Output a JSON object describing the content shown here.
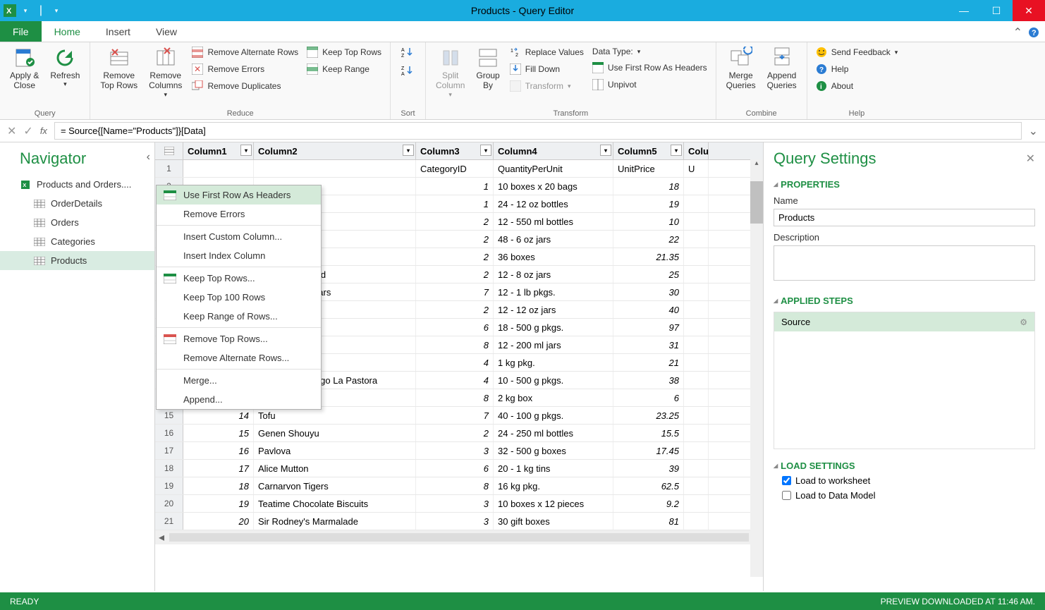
{
  "window": {
    "title": "Products - Query Editor"
  },
  "tabs": {
    "file": "File",
    "home": "Home",
    "insert": "Insert",
    "view": "View"
  },
  "ribbon": {
    "query": {
      "apply_close": "Apply &\nClose",
      "refresh": "Refresh",
      "group": "Query"
    },
    "reduce": {
      "remove_top": "Remove\nTop Rows",
      "remove_cols": "Remove\nColumns",
      "remove_alternate": "Remove Alternate Rows",
      "remove_errors": "Remove Errors",
      "remove_duplicates": "Remove Duplicates",
      "keep_top": "Keep Top Rows",
      "keep_range": "Keep Range",
      "group": "Reduce"
    },
    "sort": {
      "az": "A→Z",
      "za": "Z→A",
      "group": "Sort"
    },
    "transform": {
      "split": "Split\nColumn",
      "groupby": "Group\nBy",
      "replace": "Replace Values",
      "fill": "Fill Down",
      "transform_btn": "Transform",
      "datatype": "Data Type:",
      "first_row": "Use First Row As Headers",
      "unpivot": "Unpivot",
      "group": "Transform"
    },
    "combine": {
      "merge": "Merge\nQueries",
      "append": "Append\nQueries",
      "group": "Combine"
    },
    "help": {
      "feedback": "Send Feedback",
      "help": "Help",
      "about": "About",
      "group": "Help"
    }
  },
  "formula": "= Source{[Name=\"Products\"]}[Data]",
  "navigator": {
    "title": "Navigator",
    "root": "Products and Orders....",
    "items": [
      "OrderDetails",
      "Orders",
      "Categories",
      "Products"
    ],
    "selected": "Products"
  },
  "columns": [
    "Column1",
    "Column2",
    "Column3",
    "Column4",
    "Column5",
    "Colu"
  ],
  "header_row": [
    "",
    "",
    "CategoryID",
    "QuantityPerUnit",
    "UnitPrice",
    "U"
  ],
  "rows": [
    {
      "n": 2,
      "c1": "",
      "c2": "",
      "c3": "1",
      "c4": "10 boxes x 20 bags",
      "c5": "18"
    },
    {
      "n": 3,
      "c1": "",
      "c2": "",
      "c3": "1",
      "c4": "24 - 12 oz bottles",
      "c5": "19"
    },
    {
      "n": 4,
      "c1": "",
      "c2": "",
      "c3": "2",
      "c4": "12 - 550 ml bottles",
      "c5": "10"
    },
    {
      "n": 5,
      "c1": "",
      "c2": "ajun Seasoning",
      "c3": "2",
      "c4": "48 - 6 oz jars",
      "c5": "22"
    },
    {
      "n": 6,
      "c1": "",
      "c2": "umbo Mix",
      "c3": "2",
      "c4": "36 boxes",
      "c5": "21.35"
    },
    {
      "n": 7,
      "c1": "",
      "c2": "senberry Spread",
      "c3": "2",
      "c4": "12 - 8 oz jars",
      "c5": "25"
    },
    {
      "n": 8,
      "c1": "",
      "c2": "ganic Dried Pears",
      "c3": "7",
      "c4": "12 - 1 lb pkgs.",
      "c5": "30"
    },
    {
      "n": 9,
      "c1": "",
      "c2": "anberry Sauce",
      "c3": "2",
      "c4": "12 - 12 oz jars",
      "c5": "40"
    },
    {
      "n": 10,
      "c1": "",
      "c2": "u",
      "c3": "6",
      "c4": "18 - 500 g pkgs.",
      "c5": "97"
    },
    {
      "n": 11,
      "c1": "",
      "c2": "",
      "c3": "8",
      "c4": "12 - 200 ml jars",
      "c5": "31"
    },
    {
      "n": 12,
      "c1": "",
      "c2": "s",
      "c3": "4",
      "c4": "1 kg pkg.",
      "c5": "21"
    },
    {
      "n": 13,
      "c1": "12",
      "c2": "Queso Manchego La Pastora",
      "c3": "4",
      "c4": "10 - 500 g pkgs.",
      "c5": "38"
    },
    {
      "n": 14,
      "c1": "13",
      "c2": "Konbu",
      "c3": "8",
      "c4": "2 kg box",
      "c5": "6"
    },
    {
      "n": 15,
      "c1": "14",
      "c2": "Tofu",
      "c3": "7",
      "c4": "40 - 100 g pkgs.",
      "c5": "23.25"
    },
    {
      "n": 16,
      "c1": "15",
      "c2": "Genen Shouyu",
      "c3": "2",
      "c4": "24 - 250 ml bottles",
      "c5": "15.5"
    },
    {
      "n": 17,
      "c1": "16",
      "c2": "Pavlova",
      "c3": "3",
      "c4": "32 - 500 g boxes",
      "c5": "17.45"
    },
    {
      "n": 18,
      "c1": "17",
      "c2": "Alice Mutton",
      "c3": "6",
      "c4": "20 - 1 kg tins",
      "c5": "39"
    },
    {
      "n": 19,
      "c1": "18",
      "c2": "Carnarvon Tigers",
      "c3": "8",
      "c4": "16 kg pkg.",
      "c5": "62.5"
    },
    {
      "n": 20,
      "c1": "19",
      "c2": "Teatime Chocolate Biscuits",
      "c3": "3",
      "c4": "10 boxes x 12 pieces",
      "c5": "9.2"
    },
    {
      "n": 21,
      "c1": "20",
      "c2": "Sir Rodney's Marmalade",
      "c3": "3",
      "c4": "30 gift boxes",
      "c5": "81"
    }
  ],
  "context_menu": {
    "items": [
      {
        "label": "Use First Row As Headers",
        "icon": true,
        "hl": true
      },
      {
        "label": "Remove Errors"
      },
      {
        "sep": true
      },
      {
        "label": "Insert Custom Column..."
      },
      {
        "label": "Insert Index Column"
      },
      {
        "sep": true
      },
      {
        "label": "Keep Top Rows...",
        "icon": true,
        "icon_color": "#1e8f44"
      },
      {
        "label": "Keep Top 100 Rows"
      },
      {
        "label": "Keep Range of Rows..."
      },
      {
        "sep": true
      },
      {
        "label": "Remove Top Rows...",
        "icon": true,
        "icon_color": "#d9534f"
      },
      {
        "label": "Remove Alternate Rows..."
      },
      {
        "sep": true
      },
      {
        "label": "Merge..."
      },
      {
        "label": "Append..."
      }
    ]
  },
  "settings": {
    "title": "Query Settings",
    "properties": "PROPERTIES",
    "name_label": "Name",
    "name_value": "Products",
    "desc_label": "Description",
    "steps_label": "APPLIED STEPS",
    "step": "Source",
    "load_label": "LOAD SETTINGS",
    "load_ws": "Load to worksheet",
    "load_dm": "Load to Data Model"
  },
  "status": {
    "left": "READY",
    "right": "PREVIEW DOWNLOADED AT 11:46 AM."
  },
  "colors": {
    "accent": "#1e8f44",
    "titlebar": "#1aacdf",
    "close": "#e81123",
    "highlight": "#d4ead9"
  }
}
